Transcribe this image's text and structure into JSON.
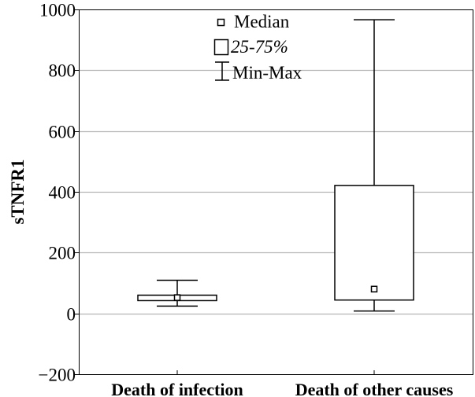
{
  "chart_data": {
    "type": "box",
    "title": "",
    "xlabel": "",
    "ylabel": "sTNFR1",
    "ylim": [
      -200,
      1000
    ],
    "yticks": [
      -200,
      0,
      200,
      400,
      600,
      800,
      1000
    ],
    "ytick_labels": [
      "−200",
      "0",
      "200",
      "400",
      "600",
      "800",
      "1000"
    ],
    "grid": true,
    "categories": [
      "Death of infection",
      "Death of other causes"
    ],
    "series": [
      {
        "name": "Death of infection",
        "min": 24,
        "q1": 42,
        "median": 52,
        "q3": 60,
        "max": 109
      },
      {
        "name": "Death of other causes",
        "min": 8,
        "q1": 44,
        "median": 80,
        "q3": 421,
        "max": 966
      }
    ],
    "legend": {
      "placement": "top-center",
      "entries": [
        "Median",
        "25-75%",
        "Min-Max"
      ]
    }
  }
}
